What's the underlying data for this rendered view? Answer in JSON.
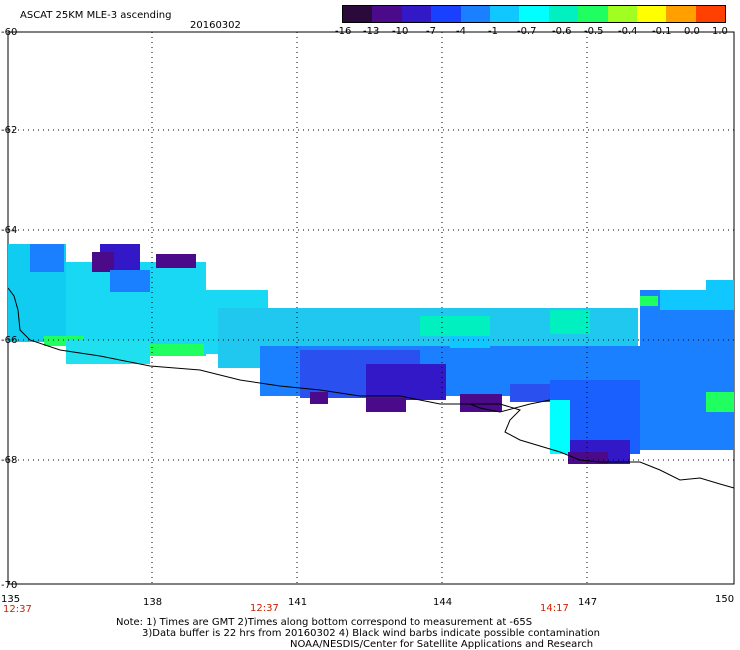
{
  "header": {
    "title": "ASCAT 25KM MLE-3 ascending",
    "date": "20160302"
  },
  "colorbar": {
    "colors": [
      "#2a0a3a",
      "#4a0a8a",
      "#3318c8",
      "#1a40ff",
      "#1a80ff",
      "#10c8ff",
      "#00ffff",
      "#00f0c0",
      "#20ff60",
      "#a0ff20",
      "#ffff00",
      "#ffa000",
      "#ff4000"
    ],
    "labels": [
      "-16",
      "-13",
      "-10",
      "-7",
      "-4",
      "-1",
      "-0.7",
      "-0.6",
      "-0.5",
      "-0.4",
      "-0.1",
      "0.0",
      "1.0"
    ]
  },
  "axes": {
    "lat_labels": [
      "-60",
      "-62",
      "-64",
      "-66",
      "-68",
      "-70"
    ],
    "lon_labels": [
      "135",
      "138",
      "141",
      "144",
      "147",
      "150"
    ],
    "time_labels": [
      "12:37",
      "12:37",
      "14:17"
    ]
  },
  "notes": {
    "line1": "Note: 1) Times are GMT 2)Times along bottom correspond to measurement at -65S",
    "line2": "3)Data buffer is 22 hrs from 20160302 4) Black wind barbs indicate possible contamination",
    "line3": "NOAA/NESDIS/Center for Satellite Applications and Research"
  }
}
